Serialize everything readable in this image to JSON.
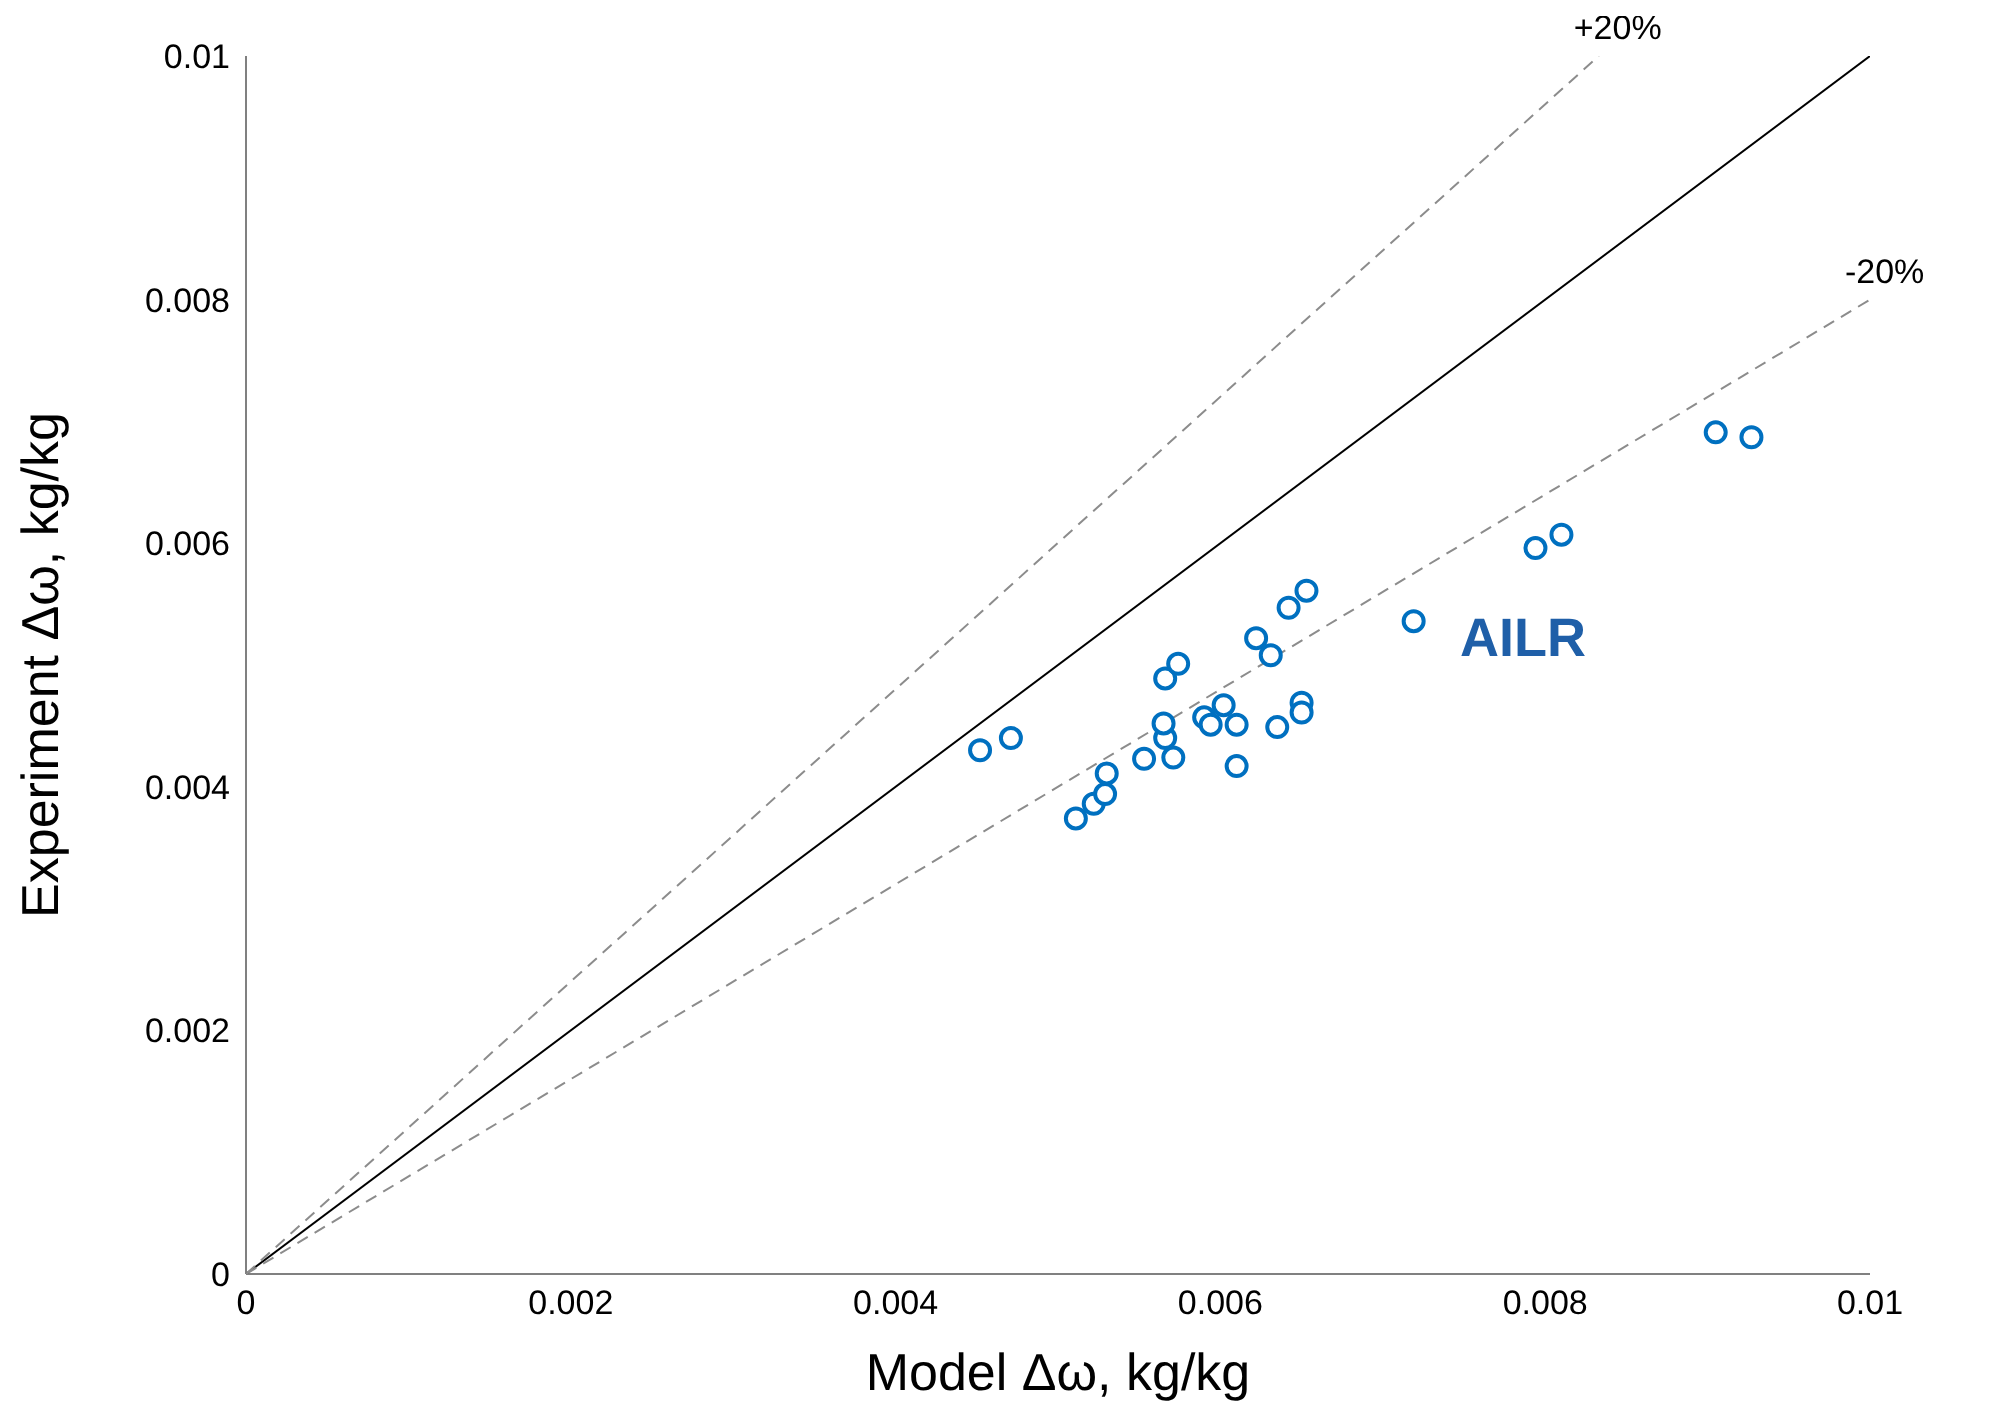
{
  "chart_data": {
    "type": "scatter",
    "xlabel": "Model Δω, kg/kg",
    "ylabel": "Experiment Δω, kg/kg",
    "xlim": [
      0,
      0.01
    ],
    "ylim": [
      0,
      0.01
    ],
    "xticks": [
      0,
      0.002,
      0.004,
      0.006,
      0.008,
      0.01
    ],
    "yticks": [
      0,
      0.002,
      0.004,
      0.006,
      0.008,
      0.01
    ],
    "grid": false,
    "legend": false,
    "series": [
      {
        "type": "line",
        "marker": "none",
        "color": "#000000",
        "line_style": "solid",
        "x": [
          0,
          0.01
        ],
        "values": [
          0,
          0.01
        ]
      },
      {
        "type": "line",
        "marker": "none",
        "name": "+20%",
        "color": "#8c8c8c",
        "line_style": "dashed",
        "x": [
          0,
          0.00833
        ],
        "values": [
          0,
          0.01
        ]
      },
      {
        "type": "line",
        "marker": "none",
        "name": "-20%",
        "color": "#8c8c8c",
        "line_style": "dashed",
        "x": [
          0,
          0.01
        ],
        "values": [
          0,
          0.008
        ]
      },
      {
        "marker": "circle",
        "name": "AILR",
        "color": "#0070c0",
        "x": [
          0.00452,
          0.00471,
          0.00511,
          0.00522,
          0.00529,
          0.0053,
          0.00553,
          0.00571,
          0.00566,
          0.00565,
          0.00566,
          0.00574,
          0.0059,
          0.00594,
          0.00602,
          0.0061,
          0.0061,
          0.00622,
          0.00631,
          0.00635,
          0.00642,
          0.00653,
          0.0065,
          0.0065,
          0.00719,
          0.00794,
          0.0081,
          0.00905,
          0.00927
        ],
        "values": [
          0.0043,
          0.0044,
          0.00374,
          0.00386,
          0.00394,
          0.00411,
          0.00423,
          0.00424,
          0.0044,
          0.00452,
          0.00489,
          0.00501,
          0.00457,
          0.00451,
          0.00467,
          0.00451,
          0.00417,
          0.00522,
          0.00508,
          0.00449,
          0.00547,
          0.00561,
          0.00469,
          0.00461,
          0.00536,
          0.00596,
          0.00607,
          0.00691,
          0.00687
        ]
      }
    ]
  }
}
